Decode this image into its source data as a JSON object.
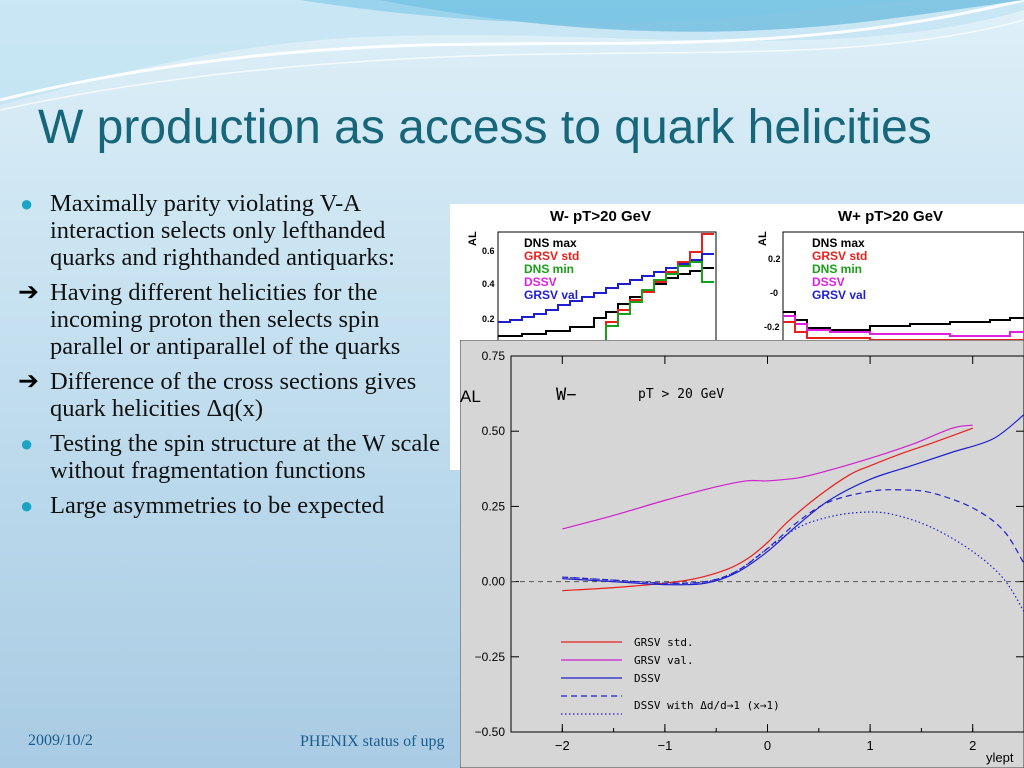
{
  "slide": {
    "title": "W production as access to quark helicities",
    "bullets": [
      {
        "marker": "dot",
        "text": "Maximally parity violating V-A interaction selects only lefthanded quarks and righthanded antiquarks:"
      },
      {
        "marker": "arrow",
        "text": "Having different helicities for the incoming proton then selects  spin parallel or antiparallel of the quarks"
      },
      {
        "marker": "arrow",
        "text": "Difference of the cross sections gives quark helicities Δq(x)"
      },
      {
        "marker": "dot",
        "text": "Testing the spin structure at the W scale without fragmentation functions"
      },
      {
        "marker": "dot",
        "text": "Large asymmetries to be expected"
      }
    ],
    "footer_date": "2009/10/2",
    "footer_title": "PHENIX status of upg"
  },
  "chart_data": [
    {
      "type": "line",
      "panel": "top-left",
      "title": "W- pT>20 GeV",
      "ylabel": "AL",
      "yticks": [
        "0.6",
        "0.4",
        "0.2"
      ],
      "legend": [
        "DNS max",
        "GRSV std",
        "DNS min",
        "DSSV",
        "GRSV val"
      ],
      "colors": [
        "#000000",
        "#e8201c",
        "#18a018",
        "#e020e0",
        "#1f1fd0"
      ]
    },
    {
      "type": "line",
      "panel": "top-right",
      "title": "W+ pT>20 GeV",
      "ylabel": "AL",
      "yticks": [
        "0.2",
        "-0",
        "-0.2"
      ],
      "legend": [
        "DNS max",
        "GRSV std",
        "DNS min",
        "DSSV",
        "GRSV val"
      ],
      "colors": [
        "#000000",
        "#e8201c",
        "#18a018",
        "#e020e0",
        "#1f1fd0"
      ]
    },
    {
      "type": "line",
      "panel": "main",
      "title": "W−",
      "annotation": "pT > 20 GeV",
      "ylabel": "AL",
      "xlabel": "ylept",
      "xlim": [
        -2.5,
        2.5
      ],
      "ylim": [
        -0.5,
        0.75
      ],
      "xticks": [
        -2,
        -1,
        0,
        1,
        2
      ],
      "xtick_labels": [
        "−2",
        "−1",
        "0",
        "1",
        "2"
      ],
      "yticks": [
        0.75,
        0.5,
        0.25,
        0.0,
        -0.25,
        -0.5
      ],
      "ytick_labels": [
        "0.75",
        "0.50",
        "0.25",
        "0.00",
        "−0.25",
        "−0.50"
      ],
      "legend_placement": "lower-left",
      "series": [
        {
          "name": "GRSV std.",
          "color": "#e8201c",
          "dash": "solid",
          "x": [
            -2,
            -1.5,
            -1,
            -0.7,
            -0.4,
            -0.2,
            0,
            0.2,
            0.5,
            0.8,
            1,
            1.3,
            1.6,
            2
          ],
          "y": [
            -0.03,
            -0.02,
            -0.005,
            0.01,
            0.04,
            0.075,
            0.13,
            0.2,
            0.285,
            0.355,
            0.385,
            0.425,
            0.46,
            0.51
          ]
        },
        {
          "name": "GRSV val.",
          "color": "#d020d0",
          "dash": "solid",
          "x": [
            -2,
            -1.5,
            -1,
            -0.5,
            -0.2,
            0,
            0.3,
            0.6,
            1,
            1.4,
            1.8,
            2
          ],
          "y": [
            0.175,
            0.22,
            0.27,
            0.315,
            0.335,
            0.335,
            0.345,
            0.37,
            0.41,
            0.455,
            0.51,
            0.52
          ]
        },
        {
          "name": "DSSV",
          "color": "#1f1fd0",
          "dash": "solid",
          "x": [
            -2,
            -1.5,
            -1,
            -0.6,
            -0.3,
            0,
            0.3,
            0.6,
            1,
            1.4,
            1.8,
            2.2,
            2.5
          ],
          "y": [
            0.01,
            0.0,
            -0.01,
            -0.005,
            0.03,
            0.1,
            0.19,
            0.27,
            0.34,
            0.385,
            0.43,
            0.475,
            0.555
          ]
        },
        {
          "name": "DSSV with Δd/d→1 (x→1)",
          "color": "#1f1fd0",
          "dash": "dashed",
          "x": [
            -2,
            -1.5,
            -1,
            -0.6,
            -0.3,
            0,
            0.3,
            0.6,
            1,
            1.3,
            1.6,
            2,
            2.3,
            2.5
          ],
          "y": [
            0.015,
            0.005,
            -0.005,
            0.0,
            0.035,
            0.11,
            0.2,
            0.265,
            0.3,
            0.305,
            0.295,
            0.245,
            0.17,
            0.06
          ]
        },
        {
          "name": "DSSV with Δd/d→1 (x→1)",
          "color": "#1f1fd0",
          "dash": "dotted",
          "x": [
            -2,
            -1.5,
            -1,
            -0.6,
            -0.3,
            0,
            0.3,
            0.6,
            0.9,
            1.2,
            1.6,
            2,
            2.3,
            2.5
          ],
          "y": [
            0.015,
            0.005,
            -0.005,
            0.0,
            0.035,
            0.11,
            0.18,
            0.215,
            0.23,
            0.225,
            0.18,
            0.1,
            0.01,
            -0.1
          ]
        }
      ],
      "legend": [
        {
          "label": "GRSV std.",
          "color": "#e8201c",
          "dash": "solid"
        },
        {
          "label": "GRSV val.",
          "color": "#d020d0",
          "dash": "solid"
        },
        {
          "label": "DSSV",
          "color": "#1f1fd0",
          "dash": "solid"
        },
        {
          "label": "",
          "color": "#1f1fd0",
          "dash": "dashed"
        },
        {
          "label": "DSSV with Δd/d→1 (x→1)",
          "color": "#1f1fd0",
          "dash": "dotted"
        }
      ]
    }
  ]
}
